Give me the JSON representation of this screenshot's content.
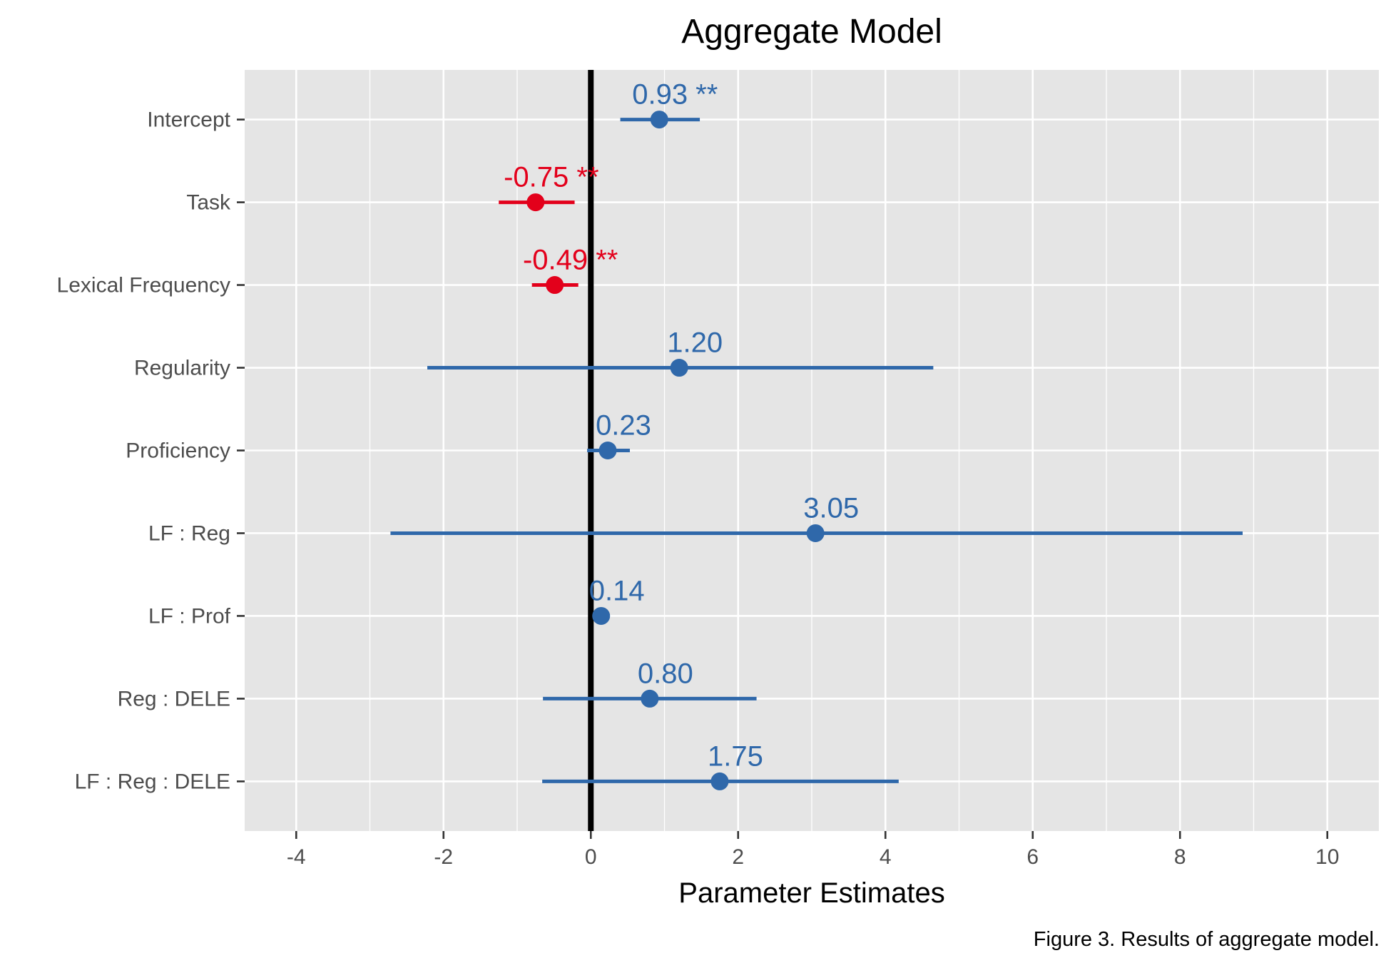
{
  "chart_data": {
    "type": "scatter",
    "title": "Aggregate Model",
    "xlabel": "Parameter Estimates",
    "ylabel": "",
    "caption": "Figure 3. Results of aggregate model.",
    "xlim": [
      -4.7,
      10.7
    ],
    "x_ticks": [
      "-4",
      "-2",
      "0",
      "2",
      "4",
      "6",
      "8",
      "10"
    ],
    "x_tick_values": [
      -4,
      -2,
      0,
      2,
      4,
      6,
      8,
      10
    ],
    "reference_line_x": 0,
    "grid": true,
    "legend": "none",
    "colors": {
      "positive": "#2f68aa",
      "negative": "#e3001b",
      "panel": "#e5e5e5",
      "grid": "#ffffff",
      "reference": "#000000"
    },
    "terms": [
      {
        "label": "Intercept",
        "estimate": 0.93,
        "ci_low": 0.4,
        "ci_high": 1.48,
        "text": "0.93 **"
      },
      {
        "label": "Task",
        "estimate": -0.75,
        "ci_low": -1.25,
        "ci_high": -0.22,
        "text": "-0.75 **"
      },
      {
        "label": "Lexical Frequency",
        "estimate": -0.49,
        "ci_low": -0.8,
        "ci_high": -0.17,
        "text": "-0.49 **"
      },
      {
        "label": "Regularity",
        "estimate": 1.2,
        "ci_low": -2.22,
        "ci_high": 4.65,
        "text": "1.20"
      },
      {
        "label": "Proficiency",
        "estimate": 0.23,
        "ci_low": -0.05,
        "ci_high": 0.53,
        "text": "0.23"
      },
      {
        "label": "LF : Reg",
        "estimate": 3.05,
        "ci_low": -2.72,
        "ci_high": 8.85,
        "text": "3.05"
      },
      {
        "label": "LF : Prof",
        "estimate": 0.14,
        "ci_low": 0.08,
        "ci_high": 0.2,
        "text": "0.14"
      },
      {
        "label": "Reg : DELE",
        "estimate": 0.8,
        "ci_low": -0.65,
        "ci_high": 2.25,
        "text": "0.80"
      },
      {
        "label": "LF : Reg : DELE",
        "estimate": 1.75,
        "ci_low": -0.66,
        "ci_high": 4.18,
        "text": "1.75"
      }
    ]
  }
}
